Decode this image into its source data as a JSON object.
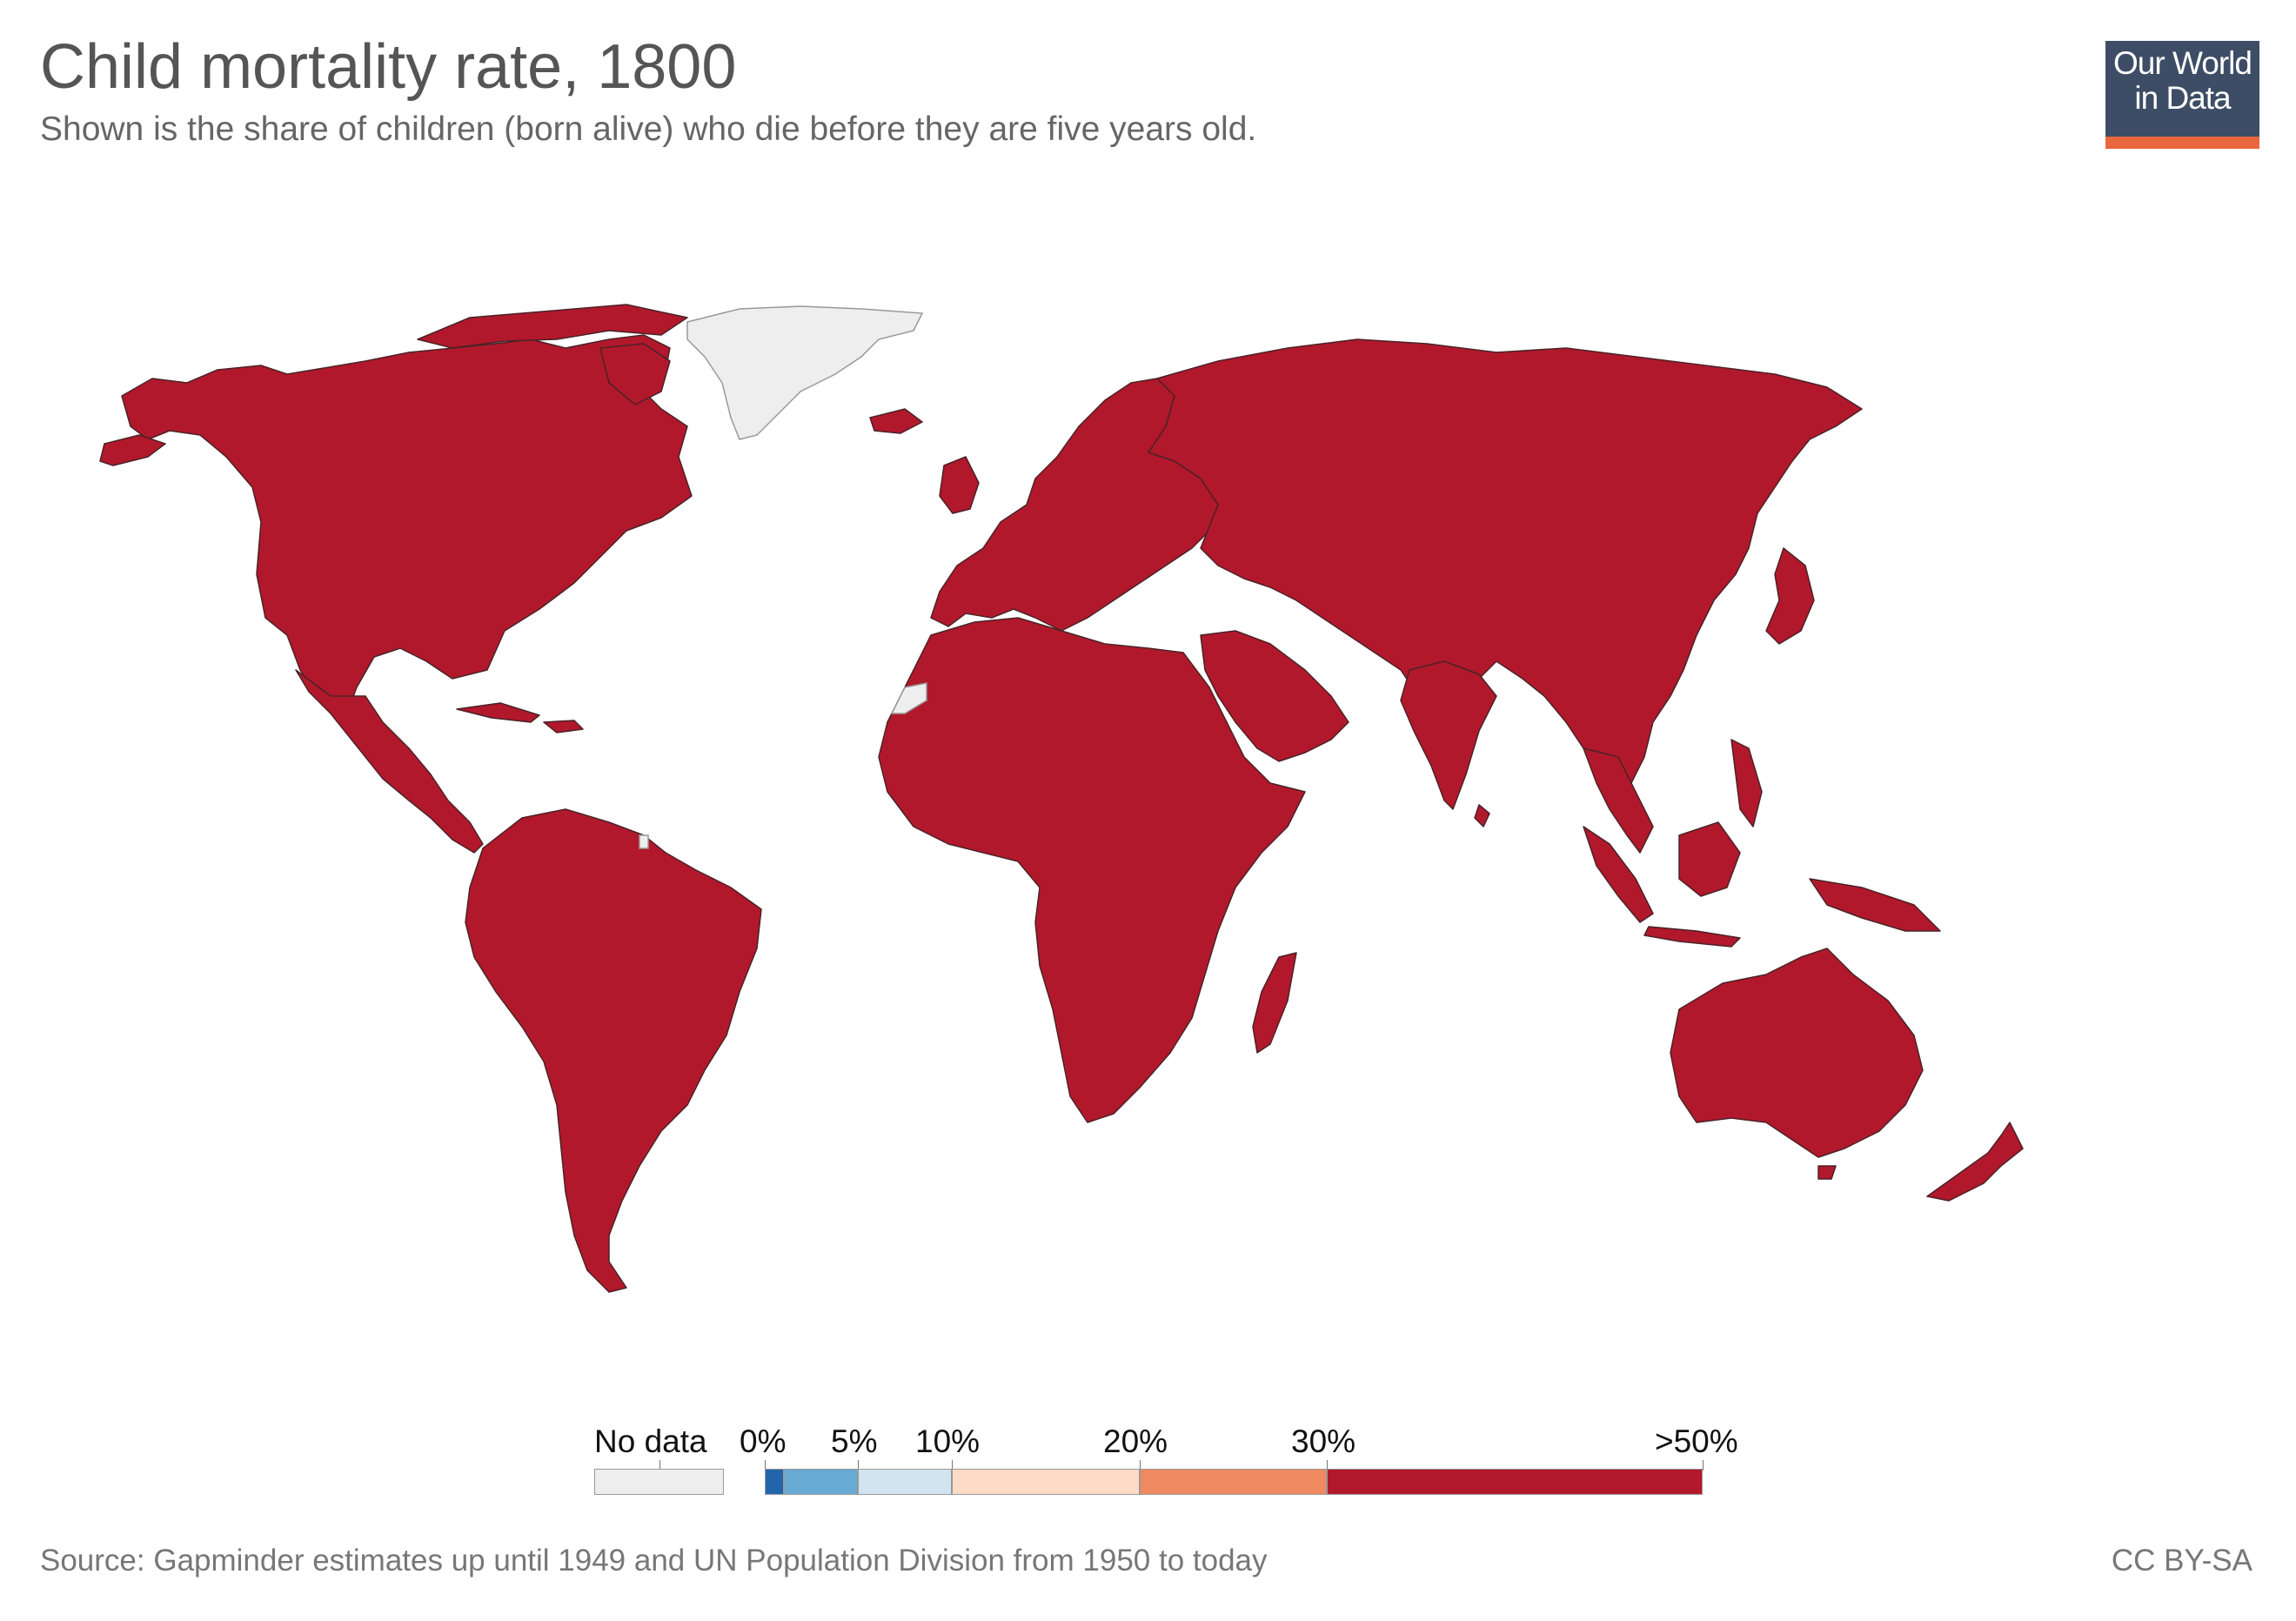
{
  "header": {
    "title": "Child mortality rate, 1800",
    "subtitle": "Shown is the share of children (born alive) who die before they are five years old."
  },
  "logo": {
    "line1": "Our World",
    "line2": "in Data"
  },
  "map": {
    "year": "1800",
    "regions": [
      {
        "name": "North America",
        "category": ">50%"
      },
      {
        "name": "Central America & Caribbean",
        "category": ">50%"
      },
      {
        "name": "South America",
        "category": ">50%"
      },
      {
        "name": "Europe",
        "category": ">50%"
      },
      {
        "name": "Africa",
        "category": ">50%"
      },
      {
        "name": "Asia",
        "category": ">50%"
      },
      {
        "name": "Oceania",
        "category": ">50%"
      },
      {
        "name": "Greenland",
        "category": "No data"
      },
      {
        "name": "Western Sahara",
        "category": "No data"
      },
      {
        "name": "French Guiana",
        "category": "No data"
      }
    ]
  },
  "legend": {
    "no_data_label": "No data",
    "bins": [
      {
        "label": "0%",
        "color": "#2166ac"
      },
      {
        "label": "5%",
        "color": "#67aad4"
      },
      {
        "label": "10%",
        "color": "#d1e4f0"
      },
      {
        "label": "20%",
        "color": "#fddbc7"
      },
      {
        "label": "30%",
        "color": "#ef8a62"
      },
      {
        "label": ">50%",
        "color": "#b2182b"
      }
    ],
    "extra_bin_color": "#2166ac",
    "no_data_color": "#eeeeee"
  },
  "colors": {
    "high": "#b2182b",
    "no_data": "#eeeeee",
    "border": "#4a2228",
    "logo_bg": "#3d4d66",
    "logo_accent": "#e8673c"
  },
  "footer": {
    "source": "Source: Gapminder estimates up until 1949 and UN Population Division from 1950 to today",
    "license": "CC BY-SA"
  }
}
